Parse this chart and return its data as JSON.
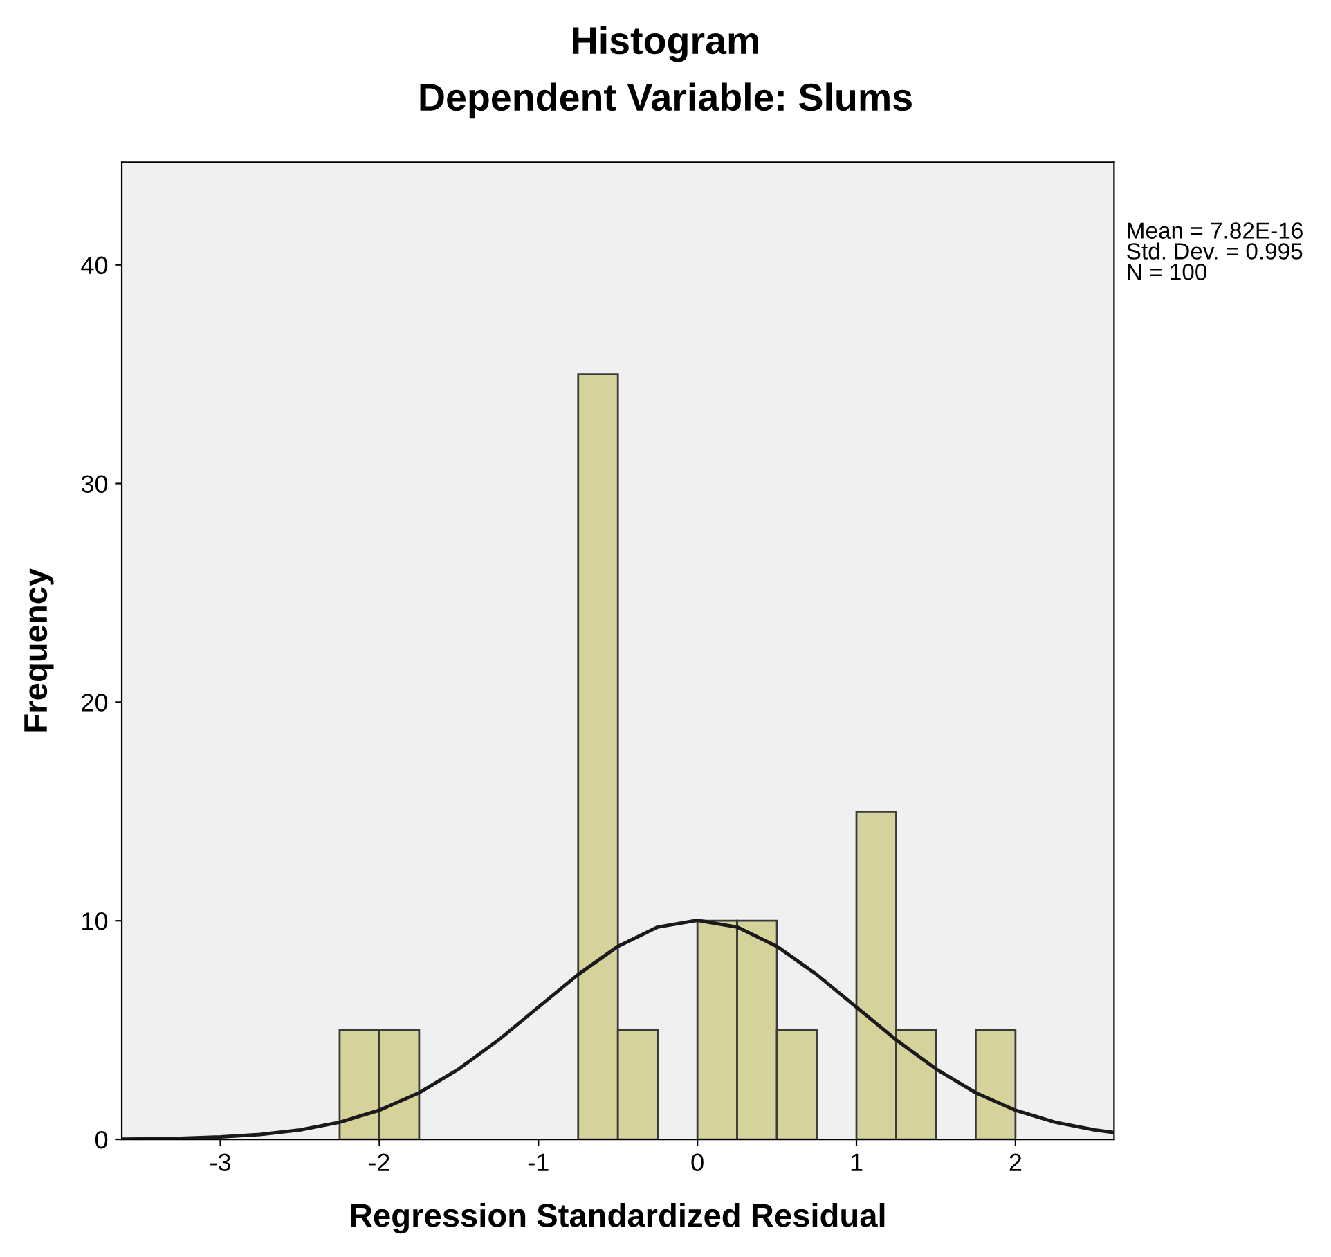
{
  "chart_data": {
    "type": "histogram",
    "title": "Histogram",
    "subtitle": "Dependent Variable: Slums",
    "xlabel": "Regression Standardized Residual",
    "ylabel": "Frequency",
    "bins": [
      -2.25,
      -2.0,
      -1.75,
      -1.5,
      -1.25,
      -1.0,
      -0.75,
      -0.5,
      -0.25,
      0.0,
      0.25,
      0.5,
      0.75,
      1.0,
      1.25,
      1.5,
      1.75,
      2.0
    ],
    "values": [
      5,
      5,
      0,
      0,
      0,
      0,
      35,
      5,
      0,
      10,
      10,
      5,
      0,
      15,
      5,
      0,
      5
    ],
    "color": "#d6d29c",
    "series": [
      {
        "type": "line",
        "color": "#1a1a1a",
        "x": [
          -3.62,
          -3.5,
          -3.25,
          -3.0,
          -2.75,
          -2.5,
          -2.25,
          -2.0,
          -1.75,
          -1.5,
          -1.25,
          -1.0,
          -0.75,
          -0.5,
          -0.25,
          0.0,
          0.25,
          0.5,
          0.75,
          1.0,
          1.25,
          1.5,
          1.75,
          2.0,
          2.25,
          2.5,
          2.62
        ],
        "values": [
          0.01,
          0.02,
          0.05,
          0.11,
          0.22,
          0.43,
          0.78,
          1.33,
          2.13,
          3.22,
          4.55,
          6.05,
          7.54,
          8.83,
          9.71,
          10.02,
          9.71,
          8.83,
          7.54,
          6.05,
          4.55,
          3.22,
          2.13,
          1.33,
          0.78,
          0.43,
          0.31
        ]
      }
    ],
    "xlim": [
      -3.62,
      2.62
    ],
    "xticks": [
      {
        "value": -3,
        "label": "-3"
      },
      {
        "value": -2,
        "label": "-2"
      },
      {
        "value": -1,
        "label": "-1"
      },
      0,
      1,
      2
    ],
    "ylim": [
      0,
      44.7
    ],
    "yticks": [
      0,
      10,
      20,
      30,
      40
    ],
    "grid": false,
    "legend": false,
    "annotations": [
      "Mean = 7.82E-16",
      "Std. Dev. = 0.995",
      "N = 100"
    ]
  }
}
